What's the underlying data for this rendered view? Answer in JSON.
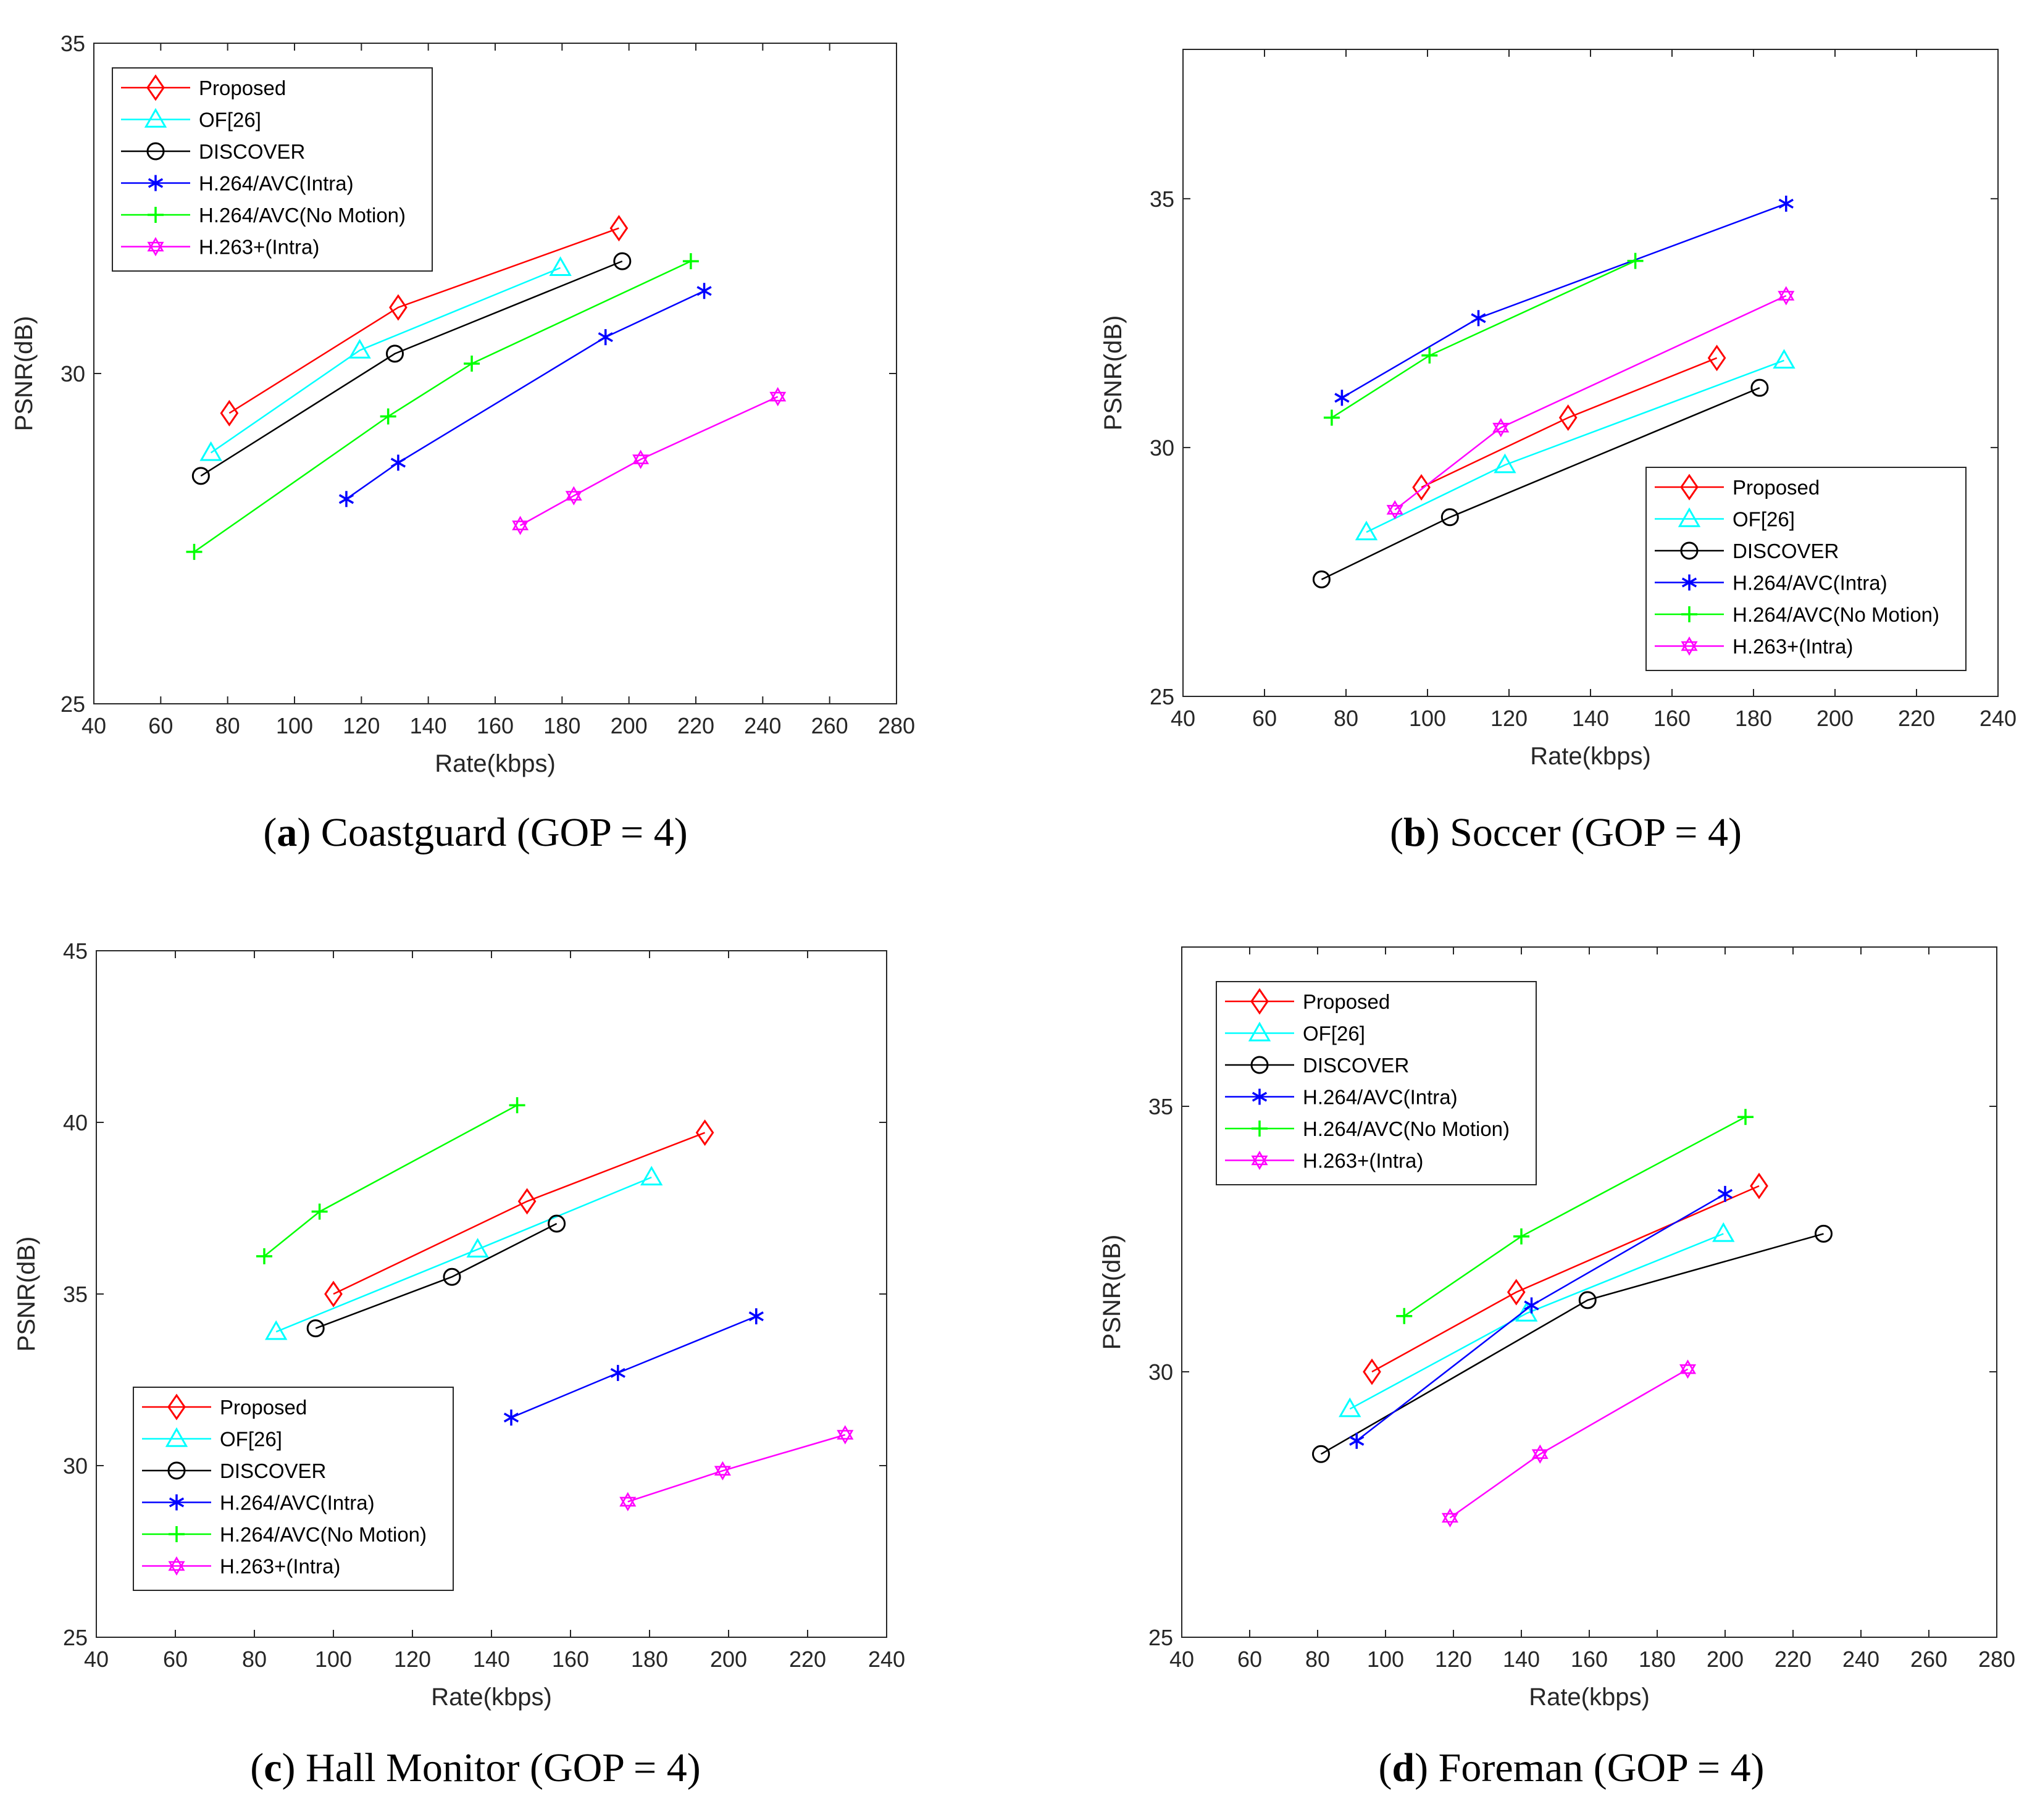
{
  "series_styles": [
    {
      "name": "Proposed",
      "color": "#ff0000",
      "marker": "diamond"
    },
    {
      "name": "OF[26]",
      "color": "#00ffff",
      "marker": "triangle"
    },
    {
      "name": "DISCOVER",
      "color": "#000000",
      "marker": "circle"
    },
    {
      "name": "H.264/AVC(Intra)",
      "color": "#0000ff",
      "marker": "asterisk"
    },
    {
      "name": "H.264/AVC(No Motion)",
      "color": "#00ff00",
      "marker": "plus"
    },
    {
      "name": "H.263+(Intra)",
      "color": "#ff00ff",
      "marker": "hexagram"
    }
  ],
  "chart_data": [
    {
      "type": "line",
      "caption_letter": "a",
      "caption_text": " Coastguard (GOP = 4)",
      "xlabel": "Rate(kbps)",
      "ylabel": "PSNR(dB)",
      "xlim": [
        40,
        280
      ],
      "ylim": [
        25,
        35
      ],
      "xticks": [
        40,
        60,
        80,
        100,
        120,
        140,
        160,
        180,
        200,
        220,
        240,
        260,
        280
      ],
      "yticks": [
        25,
        30,
        35
      ],
      "legend_position": "top-left",
      "series": [
        {
          "name": "Proposed",
          "x": [
            80.5,
            131,
            197
          ],
          "y": [
            29.4,
            31.0,
            32.2
          ]
        },
        {
          "name": "OF[26]",
          "x": [
            75,
            119.5,
            179.5
          ],
          "y": [
            28.8,
            30.35,
            31.6
          ]
        },
        {
          "name": "DISCOVER",
          "x": [
            72,
            130,
            198
          ],
          "y": [
            28.45,
            30.3,
            31.7
          ]
        },
        {
          "name": "H.264/AVC(Intra)",
          "x": [
            115.5,
            131,
            193,
            222.5
          ],
          "y": [
            28.1,
            28.65,
            30.55,
            31.25
          ]
        },
        {
          "name": "H.264/AVC(No Motion)",
          "x": [
            70,
            128,
            153,
            218.5
          ],
          "y": [
            27.3,
            29.35,
            30.15,
            31.7
          ]
        },
        {
          "name": "H.263+(Intra)",
          "x": [
            167.5,
            183.5,
            203.5,
            244.5
          ],
          "y": [
            27.7,
            28.15,
            28.7,
            29.65
          ]
        }
      ]
    },
    {
      "type": "line",
      "caption_letter": "b",
      "caption_text": " Soccer (GOP = 4)",
      "xlabel": "Rate(kbps)",
      "ylabel": "PSNR(dB)",
      "xlim": [
        40,
        240
      ],
      "ylim": [
        25,
        38
      ],
      "xticks": [
        40,
        60,
        80,
        100,
        120,
        140,
        160,
        180,
        200,
        220,
        240
      ],
      "yticks": [
        25,
        30,
        35
      ],
      "legend_position": "bottom-right",
      "series": [
        {
          "name": "Proposed",
          "x": [
            98.5,
            134.5,
            171
          ],
          "y": [
            29.2,
            30.6,
            31.8
          ]
        },
        {
          "name": "OF[26]",
          "x": [
            85,
            119,
            187.5
          ],
          "y": [
            28.3,
            29.65,
            31.75
          ]
        },
        {
          "name": "DISCOVER",
          "x": [
            74,
            105.5,
            181.5
          ],
          "y": [
            27.35,
            28.6,
            31.2
          ]
        },
        {
          "name": "H.264/AVC(Intra)",
          "x": [
            79,
            112.5,
            188
          ],
          "y": [
            31.0,
            32.6,
            34.9
          ]
        },
        {
          "name": "H.264/AVC(No Motion)",
          "x": [
            76.5,
            100.5,
            151
          ],
          "y": [
            30.6,
            31.85,
            33.75
          ]
        },
        {
          "name": "H.263+(Intra)",
          "x": [
            92,
            118,
            188
          ],
          "y": [
            28.75,
            30.4,
            33.05
          ]
        }
      ]
    },
    {
      "type": "line",
      "caption_letter": "c",
      "caption_text": " Hall Monitor (GOP = 4)",
      "xlabel": "Rate(kbps)",
      "ylabel": "PSNR(dB)",
      "xlim": [
        40,
        240
      ],
      "ylim": [
        25,
        45
      ],
      "xticks": [
        40,
        60,
        80,
        100,
        120,
        140,
        160,
        180,
        200,
        220,
        240
      ],
      "yticks": [
        25,
        30,
        35,
        40,
        45
      ],
      "legend_position": "bottom-left",
      "series": [
        {
          "name": "Proposed",
          "x": [
            100,
            149,
            194
          ],
          "y": [
            35.0,
            37.7,
            39.7
          ]
        },
        {
          "name": "OF[26]",
          "x": [
            85.5,
            136.5,
            180.5
          ],
          "y": [
            33.9,
            36.3,
            38.4
          ]
        },
        {
          "name": "DISCOVER",
          "x": [
            95.5,
            130,
            156.5
          ],
          "y": [
            34.0,
            35.5,
            37.05
          ]
        },
        {
          "name": "H.264/AVC(Intra)",
          "x": [
            145,
            172,
            207
          ],
          "y": [
            31.4,
            32.7,
            34.35
          ]
        },
        {
          "name": "H.264/AVC(No Motion)",
          "x": [
            82.5,
            96.5,
            146.5
          ],
          "y": [
            36.1,
            37.4,
            40.5
          ]
        },
        {
          "name": "H.263+(Intra)",
          "x": [
            174.5,
            198.5,
            229.5
          ],
          "y": [
            28.95,
            29.85,
            30.9
          ]
        }
      ]
    },
    {
      "type": "line",
      "caption_letter": "d",
      "caption_text": " Foreman (GOP = 4)",
      "xlabel": "Rate(kbps)",
      "ylabel": "PSNR(dB)",
      "xlim": [
        40,
        280
      ],
      "ylim": [
        25,
        38
      ],
      "xticks": [
        40,
        60,
        80,
        100,
        120,
        140,
        160,
        180,
        200,
        220,
        240,
        260,
        280
      ],
      "yticks": [
        25,
        30,
        35
      ],
      "legend_position": "top-left",
      "series": [
        {
          "name": "Proposed",
          "x": [
            96,
            138.5,
            210
          ],
          "y": [
            30.0,
            31.5,
            33.5
          ]
        },
        {
          "name": "OF[26]",
          "x": [
            89.5,
            141.5,
            199.5
          ],
          "y": [
            29.3,
            31.1,
            32.6
          ]
        },
        {
          "name": "DISCOVER",
          "x": [
            81,
            159.5,
            229
          ],
          "y": [
            28.45,
            31.35,
            32.6
          ]
        },
        {
          "name": "H.264/AVC(Intra)",
          "x": [
            91.5,
            143,
            200
          ],
          "y": [
            28.7,
            31.25,
            33.35
          ]
        },
        {
          "name": "H.264/AVC(No Motion)",
          "x": [
            105.5,
            140,
            206
          ],
          "y": [
            31.05,
            32.55,
            34.8
          ]
        },
        {
          "name": "H.263+(Intra)",
          "x": [
            119,
            145.5,
            189
          ],
          "y": [
            27.25,
            28.45,
            30.05
          ]
        }
      ]
    }
  ]
}
